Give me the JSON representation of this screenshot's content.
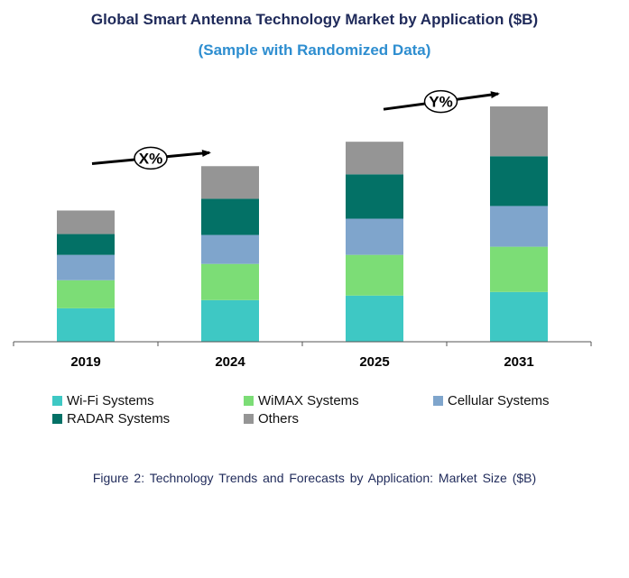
{
  "chart_data": {
    "type": "bar",
    "stacked": true,
    "title": "Global Smart Antenna Technology Market by Application ($B)",
    "subtitle": "(Sample with Randomized Data)",
    "categories": [
      "2019",
      "2024",
      "2025",
      "2031"
    ],
    "series": [
      {
        "name": "Wi-Fi Systems",
        "color": "#3ec8c4",
        "values": [
          3.7,
          4.6,
          5.1,
          5.5
        ]
      },
      {
        "name": "WiMAX Systems",
        "color": "#7cdd76",
        "values": [
          3.1,
          4.0,
          4.5,
          5.0
        ]
      },
      {
        "name": "Cellular Systems",
        "color": "#7fa5cc",
        "values": [
          2.8,
          3.2,
          4.0,
          4.5
        ]
      },
      {
        "name": "RADAR Systems",
        "color": "#037166",
        "values": [
          2.3,
          4.0,
          4.9,
          5.5
        ]
      },
      {
        "name": "Others",
        "color": "#959595",
        "values": [
          2.6,
          3.6,
          3.6,
          5.5
        ]
      }
    ],
    "ylim": [
      0,
      27
    ],
    "xlabel": "",
    "ylabel": "",
    "annotations": [
      {
        "label": "X%",
        "from": "2019",
        "to": "2024"
      },
      {
        "label": "Y%",
        "from": "2025",
        "to": "2031"
      }
    ],
    "legend_position": "bottom"
  },
  "caption": "Figure 2: Technology Trends and Forecasts by Application: Market Size ($B)"
}
